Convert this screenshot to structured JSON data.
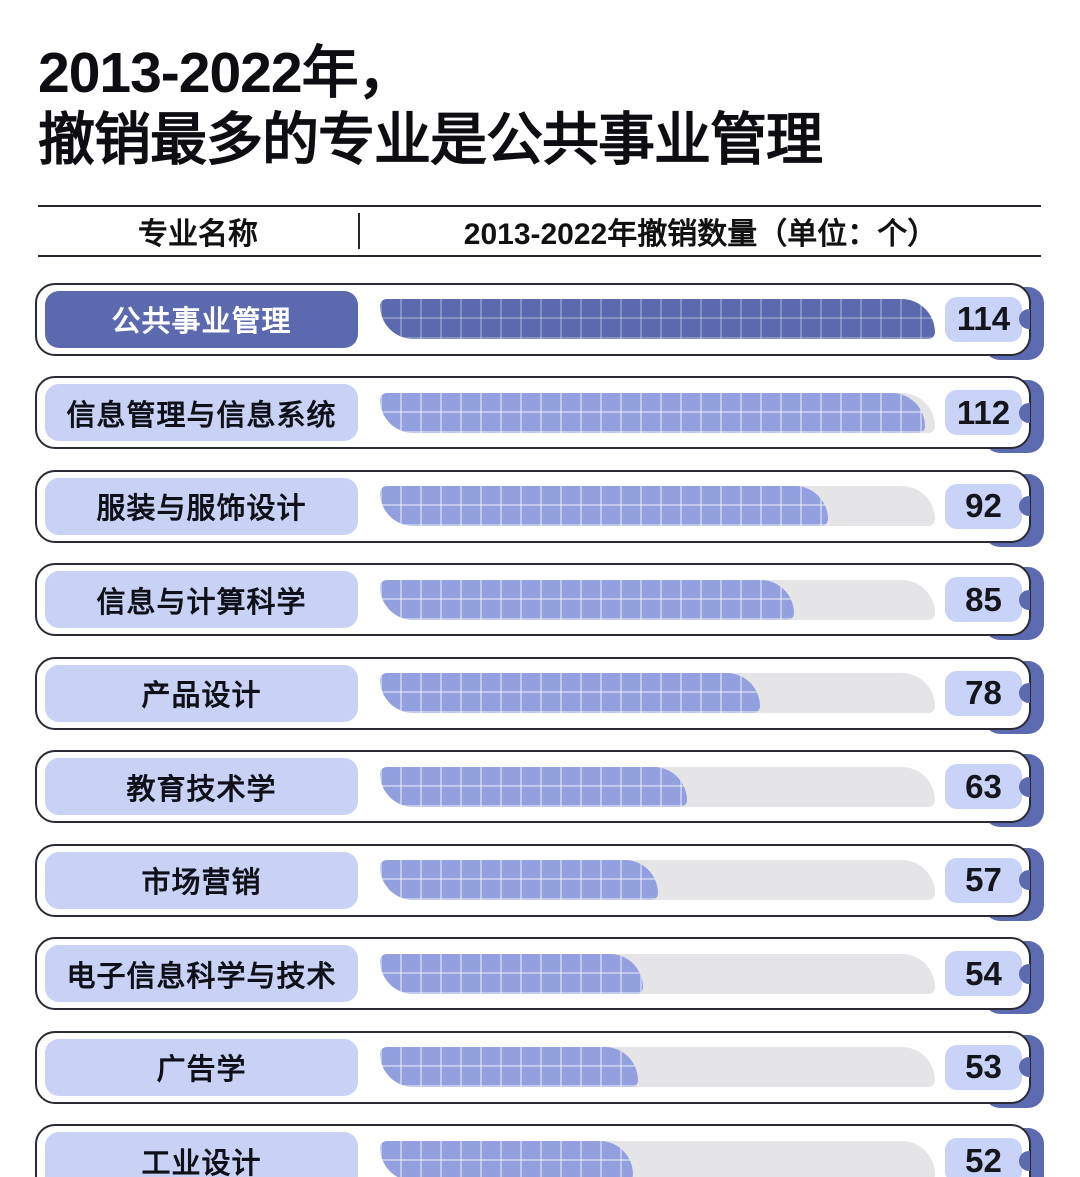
{
  "title": {
    "line1": "2013-2022年，",
    "line2": "撤销最多的专业是公共事业管理"
  },
  "table_header": {
    "col1": "专业名称",
    "col2": "2013-2022年撤销数量（单位：个）"
  },
  "colors": {
    "highlight_dark": "#5b69ae",
    "bar_blue": "#93a0e0",
    "pill_light": "#c9d2f5",
    "value_box": "#c9d3f7",
    "track_gray": "#e5e5e8",
    "spine_blue": "#5c6ab0",
    "border_dark": "#2b2b36"
  },
  "rows": [
    {
      "label": "公共事业管理",
      "value": 114,
      "highlight": true
    },
    {
      "label": "信息管理与信息系统",
      "value": 112,
      "highlight": false
    },
    {
      "label": "服装与服饰设计",
      "value": 92,
      "highlight": false
    },
    {
      "label": "信息与计算科学",
      "value": 85,
      "highlight": false
    },
    {
      "label": "产品设计",
      "value": 78,
      "highlight": false
    },
    {
      "label": "教育技术学",
      "value": 63,
      "highlight": false
    },
    {
      "label": "市场营销",
      "value": 57,
      "highlight": false
    },
    {
      "label": "电子信息科学与技术",
      "value": 54,
      "highlight": false
    },
    {
      "label": "广告学",
      "value": 53,
      "highlight": false
    },
    {
      "label": "工业设计",
      "value": 52,
      "highlight": false
    }
  ],
  "chart_data": {
    "type": "bar",
    "orientation": "horizontal",
    "title": "2013-2022年，撤销最多的专业是公共事业管理",
    "categories": [
      "公共事业管理",
      "信息管理与信息系统",
      "服装与服饰设计",
      "信息与计算科学",
      "产品设计",
      "教育技术学",
      "市场营销",
      "电子信息科学与技术",
      "广告学",
      "工业设计"
    ],
    "values": [
      114,
      112,
      92,
      85,
      78,
      63,
      57,
      54,
      53,
      52
    ],
    "xlabel": "2013-2022年撤销数量（单位：个）",
    "ylabel": "专业名称",
    "xlim": [
      0,
      114
    ],
    "max_value": 114,
    "highlighted_category": "公共事业管理",
    "grid": "textured bar fill, no axis gridlines",
    "legend": "none",
    "value_labels": "shown at bar end in rounded badges"
  }
}
